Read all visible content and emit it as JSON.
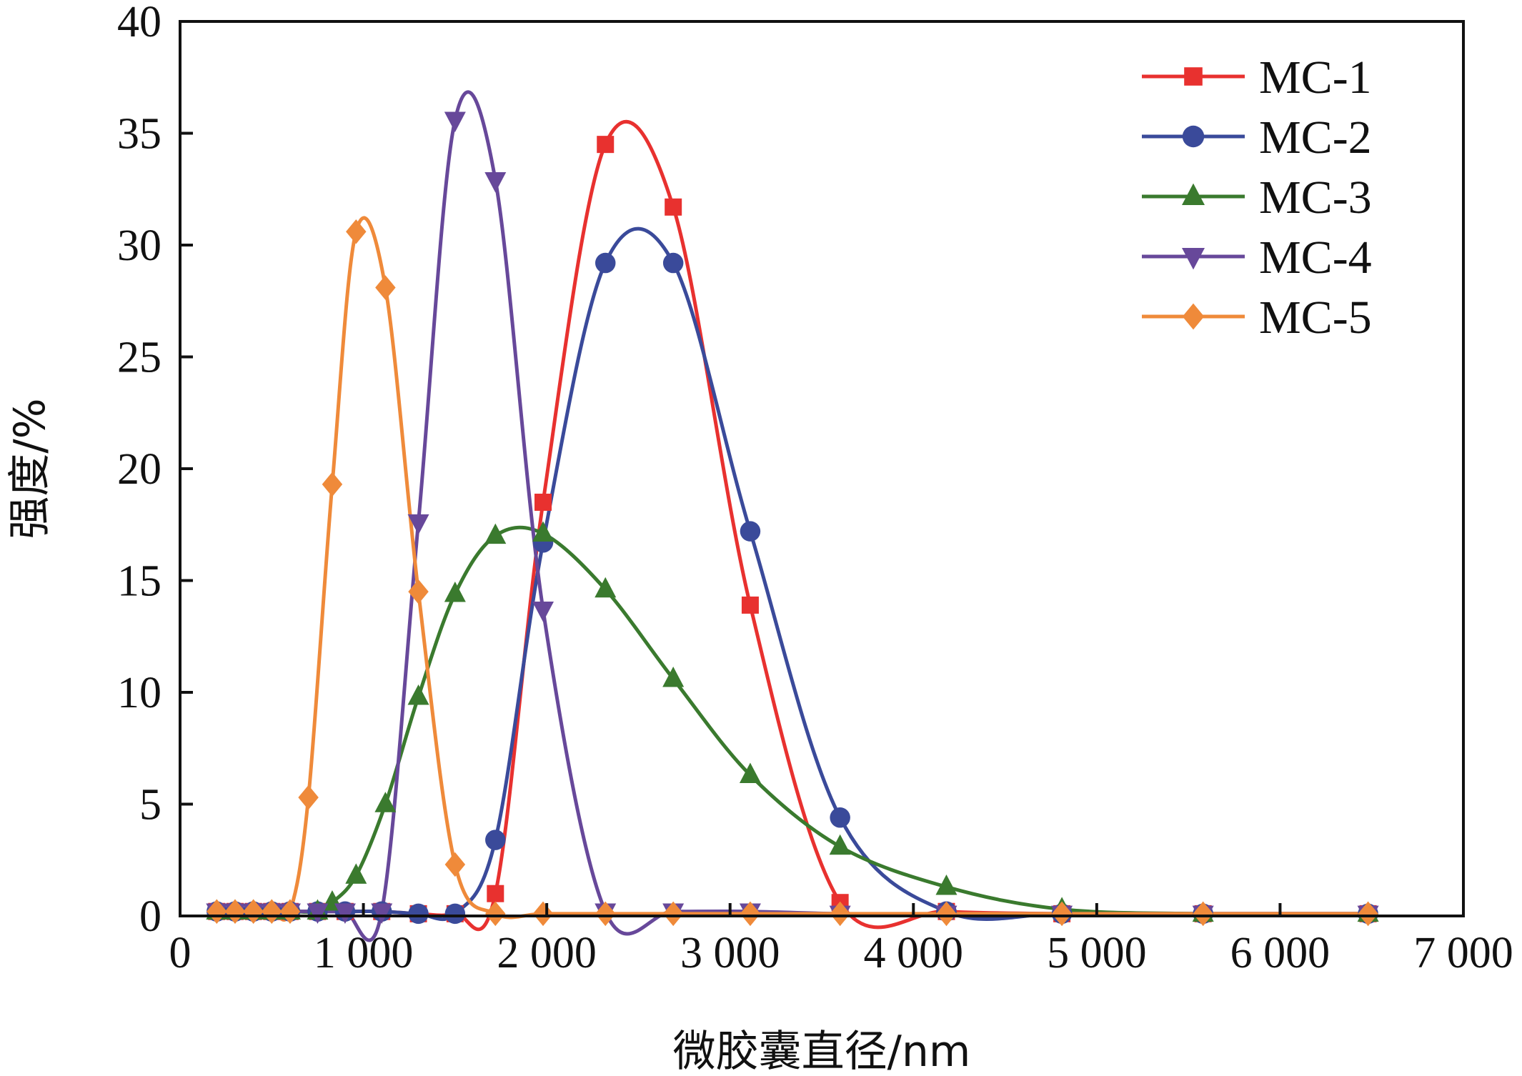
{
  "chart_data": {
    "type": "line",
    "title": "",
    "xlabel": "微胶囊直径/nm",
    "ylabel": "强度/%",
    "xlim": [
      0,
      7000
    ],
    "ylim": [
      0,
      40
    ],
    "x_ticks": [
      0,
      1000,
      2000,
      3000,
      4000,
      5000,
      6000,
      7000
    ],
    "x_tick_labels": [
      "0",
      "1 000",
      "2 000",
      "3 000",
      "4 000",
      "5 000",
      "6 000",
      "7 000"
    ],
    "y_ticks": [
      0,
      5,
      10,
      15,
      20,
      25,
      30,
      35,
      40
    ],
    "y_tick_labels": [
      "0",
      "5",
      "10",
      "15",
      "20",
      "25",
      "30",
      "35",
      "40"
    ],
    "grid": false,
    "legend_position": "top-right",
    "series": [
      {
        "name": "MC-1",
        "color": "#e8312f",
        "marker": "square",
        "x": [
          200,
          300,
          400,
          500,
          600,
          750,
          900,
          1100,
          1300,
          1500,
          1720,
          1980,
          2320,
          2690,
          3110,
          3600,
          4180,
          4810,
          5580,
          6480
        ],
        "y": [
          0.2,
          0.2,
          0.2,
          0.2,
          0.2,
          0.2,
          0.2,
          0.2,
          0.1,
          0.1,
          1.0,
          18.5,
          34.5,
          31.7,
          13.9,
          0.6,
          0.2,
          0.1,
          0.1,
          0.1
        ]
      },
      {
        "name": "MC-2",
        "color": "#3a4a9a",
        "marker": "circle",
        "x": [
          200,
          300,
          400,
          500,
          600,
          750,
          900,
          1100,
          1300,
          1500,
          1720,
          1980,
          2320,
          2690,
          3110,
          3600,
          4180,
          4810,
          5580,
          6480
        ],
        "y": [
          0.2,
          0.2,
          0.2,
          0.2,
          0.2,
          0.2,
          0.2,
          0.2,
          0.1,
          0.1,
          3.4,
          16.7,
          29.2,
          29.2,
          17.2,
          4.4,
          0.2,
          0.1,
          0.1,
          0.1
        ]
      },
      {
        "name": "MC-3",
        "color": "#3a7a2e",
        "marker": "triangle-up",
        "x": [
          200,
          300,
          400,
          500,
          600,
          750,
          830,
          960,
          1120,
          1300,
          1500,
          1720,
          1980,
          2320,
          2690,
          3110,
          3600,
          4180,
          4810,
          5580,
          6480
        ],
        "y": [
          0.2,
          0.2,
          0.2,
          0.2,
          0.2,
          0.2,
          0.6,
          1.8,
          5.0,
          9.8,
          14.4,
          17.0,
          17.1,
          14.6,
          10.6,
          6.3,
          3.1,
          1.3,
          0.3,
          0.1,
          0.1
        ]
      },
      {
        "name": "MC-4",
        "color": "#67489a",
        "marker": "triangle-down",
        "x": [
          200,
          300,
          400,
          500,
          600,
          750,
          900,
          1100,
          1300,
          1500,
          1720,
          1980,
          2320,
          2690,
          3110,
          3600,
          4180,
          4810,
          5580,
          6480
        ],
        "y": [
          0.2,
          0.2,
          0.2,
          0.2,
          0.2,
          0.2,
          0.2,
          0.2,
          17.6,
          35.6,
          32.9,
          13.7,
          0.2,
          0.2,
          0.2,
          0.1,
          0.1,
          0.1,
          0.1,
          0.1
        ]
      },
      {
        "name": "MC-5",
        "color": "#ef8a3a",
        "marker": "diamond",
        "x": [
          200,
          300,
          400,
          500,
          600,
          700,
          830,
          960,
          1120,
          1300,
          1500,
          1720,
          1980,
          2320,
          2690,
          3110,
          3600,
          4180,
          4810,
          5580,
          6480
        ],
        "y": [
          0.2,
          0.2,
          0.2,
          0.2,
          0.2,
          5.3,
          19.3,
          30.6,
          28.1,
          14.5,
          2.3,
          0.1,
          0.1,
          0.1,
          0.1,
          0.1,
          0.1,
          0.1,
          0.1,
          0.1,
          0.1
        ]
      }
    ]
  }
}
